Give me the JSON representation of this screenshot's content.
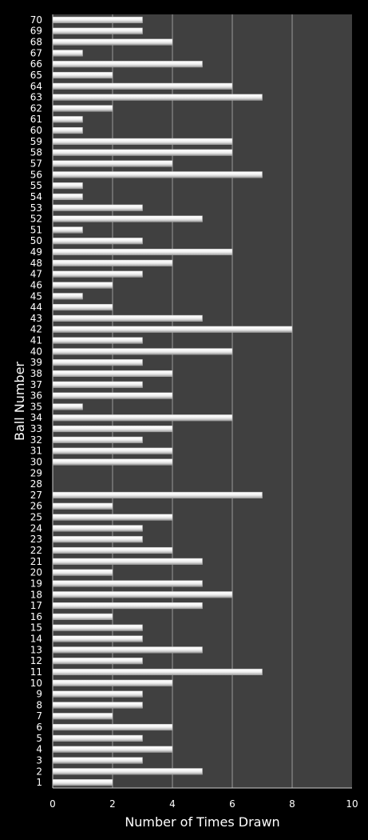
{
  "chart_data": {
    "type": "bar",
    "orientation": "horizontal",
    "title": "",
    "xlabel": "Number of Times Drawn",
    "ylabel": "Ball Number",
    "xlim": [
      0,
      10
    ],
    "x_ticks": [
      0,
      2,
      4,
      6,
      8,
      10
    ],
    "grid": "vertical",
    "colors": {
      "background": "#000000",
      "plot_area": "#404040",
      "bar": "#f2f2f2",
      "grid": "#9a9a9a",
      "text": "#ffffff"
    },
    "categories": [
      "1",
      "2",
      "3",
      "4",
      "5",
      "6",
      "7",
      "8",
      "9",
      "10",
      "11",
      "12",
      "13",
      "14",
      "15",
      "16",
      "17",
      "18",
      "19",
      "20",
      "21",
      "22",
      "23",
      "24",
      "25",
      "26",
      "27",
      "28",
      "29",
      "30",
      "31",
      "32",
      "33",
      "34",
      "35",
      "36",
      "37",
      "38",
      "39",
      "40",
      "41",
      "42",
      "43",
      "44",
      "45",
      "46",
      "47",
      "48",
      "49",
      "50",
      "51",
      "52",
      "53",
      "54",
      "55",
      "56",
      "57",
      "58",
      "59",
      "60",
      "61",
      "62",
      "63",
      "64",
      "65",
      "66",
      "67",
      "68",
      "69",
      "70"
    ],
    "values": [
      2,
      5,
      3,
      4,
      3,
      4,
      2,
      3,
      3,
      4,
      7,
      3,
      5,
      3,
      3,
      2,
      5,
      6,
      5,
      2,
      5,
      4,
      3,
      3,
      4,
      2,
      7,
      0,
      0,
      4,
      4,
      3,
      4,
      6,
      1,
      4,
      3,
      4,
      3,
      6,
      3,
      8,
      5,
      2,
      1,
      2,
      3,
      4,
      6,
      3,
      1,
      5,
      3,
      1,
      1,
      7,
      4,
      6,
      6,
      1,
      1,
      2,
      7,
      6,
      2,
      5,
      1,
      4,
      3,
      3
    ]
  }
}
